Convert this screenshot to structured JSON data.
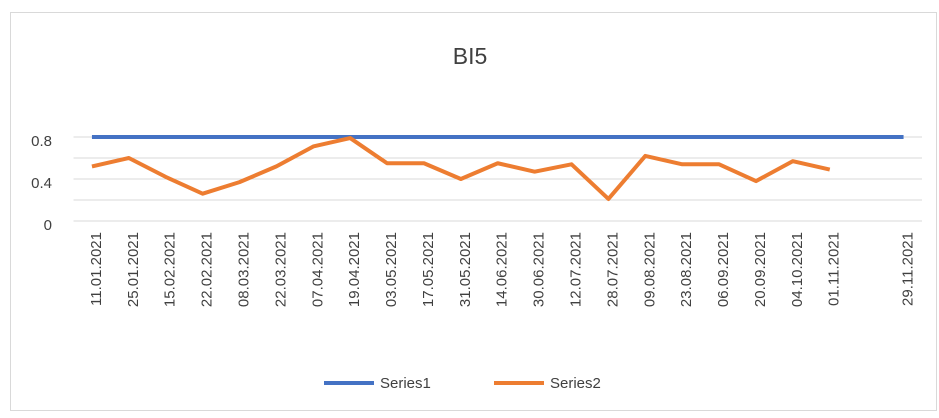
{
  "chart_data": {
    "type": "line",
    "title": "BI5",
    "categories": [
      "11.01.2021",
      "25.01.2021",
      "15.02.2021",
      "22.02.2021",
      "08.03.2021",
      "22.03.2021",
      "07.04.2021",
      "19.04.2021",
      "03.05.2021",
      "17.05.2021",
      "31.05.2021",
      "14.06.2021",
      "30.06.2021",
      "12.07.2021",
      "28.07.2021",
      "09.08.2021",
      "23.08.2021",
      "06.09.2021",
      "20.09.2021",
      "04.10.2021",
      "01.11.2021",
      null,
      "29.11.2021"
    ],
    "series": [
      {
        "name": "Series1",
        "color": "#4472c4",
        "values": [
          0.8,
          0.8,
          0.8,
          0.8,
          0.8,
          0.8,
          0.8,
          0.8,
          0.8,
          0.8,
          0.8,
          0.8,
          0.8,
          0.8,
          0.8,
          0.8,
          0.8,
          0.8,
          0.8,
          0.8,
          0.8,
          0.8,
          0.8
        ]
      },
      {
        "name": "Series2",
        "color": "#ed7d31",
        "values": [
          0.52,
          0.6,
          0.42,
          0.26,
          0.37,
          0.52,
          0.71,
          0.79,
          0.55,
          0.55,
          0.4,
          0.55,
          0.47,
          0.54,
          0.21,
          0.62,
          0.54,
          0.54,
          0.38,
          0.57,
          0.49,
          null,
          null
        ]
      }
    ],
    "ylim": [
      0,
      0.8
    ],
    "yticks": [
      0,
      0.4,
      0.8
    ],
    "minor_yticks": [
      0.2,
      0.6
    ],
    "grid": true,
    "legend": "bottom"
  }
}
